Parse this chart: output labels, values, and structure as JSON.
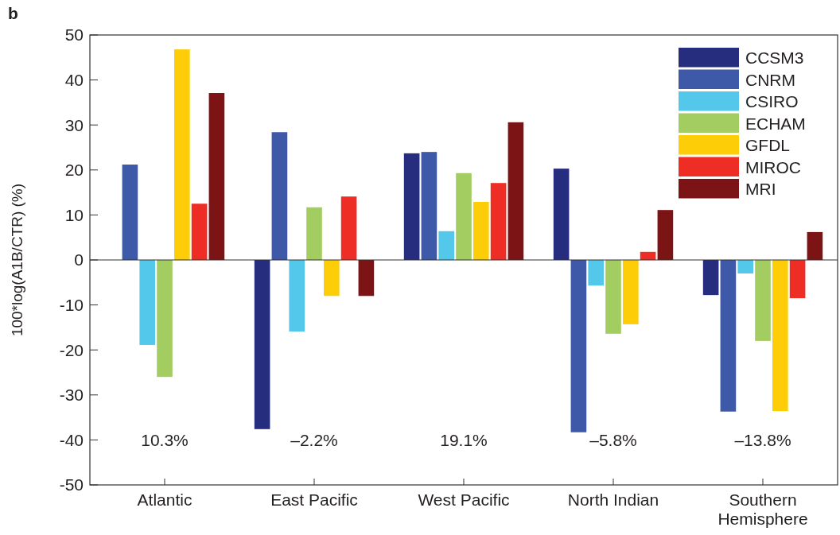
{
  "chart_data": {
    "type": "bar",
    "ylabel": "100*log(A1B/CTR) (%)",
    "categories": [
      "Atlantic",
      "East Pacific",
      "West Pacific",
      "North Indian",
      "Southern Hemisphere"
    ],
    "series": [
      {
        "name": "CCSM3",
        "color": "#262d7e",
        "values": [
          null,
          -37.6,
          23.7,
          20.3,
          -7.8
        ]
      },
      {
        "name": "CNRM",
        "color": "#3d59a8",
        "values": [
          21.2,
          28.4,
          24,
          -38.3,
          -33.7
        ]
      },
      {
        "name": "CSIRO",
        "color": "#54c8ea",
        "values": [
          -18.9,
          -15.9,
          6.4,
          -5.7,
          -3
        ]
      },
      {
        "name": "ECHAM",
        "color": "#a3cd60",
        "values": [
          -26,
          11.7,
          19.3,
          -16.4,
          -18
        ]
      },
      {
        "name": "GFDL",
        "color": "#fdcd08",
        "values": [
          46.8,
          -8,
          12.9,
          -14.3,
          -33.6
        ]
      },
      {
        "name": "MIROC",
        "color": "#ee2d24",
        "values": [
          12.5,
          14.1,
          17.1,
          1.8,
          -8.5
        ]
      },
      {
        "name": "MRI",
        "color": "#7c1416",
        "values": [
          37.1,
          -8,
          30.6,
          11.1,
          6.2
        ]
      }
    ],
    "ylim": [
      -50,
      50
    ],
    "yticks": [
      -50,
      -40,
      -30,
      -20,
      -10,
      0,
      10,
      20,
      30,
      40,
      50
    ],
    "legend": "top right",
    "annotations": [
      "b",
      "10.3%",
      "–2.2%",
      "19.1%",
      "–5.8%",
      "–13.8%"
    ]
  }
}
